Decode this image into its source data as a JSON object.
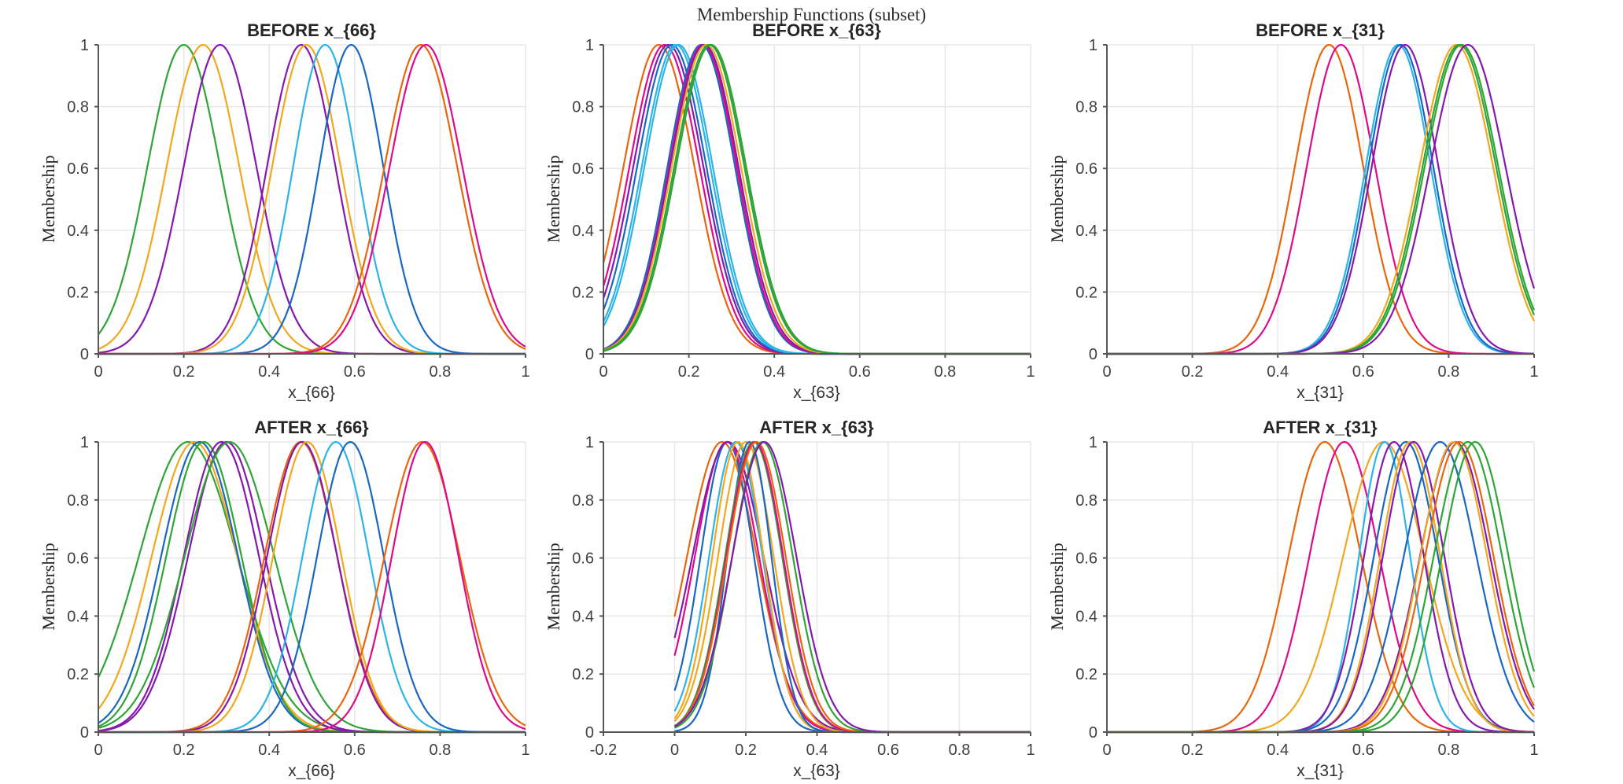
{
  "figure": {
    "title": "Membership Functions (subset)",
    "background": "#ffffff"
  },
  "palette": {
    "orange": "#E8660D",
    "magenta": "#DC0B8C",
    "purple": "#8519AC",
    "blue": "#1A67C2",
    "cyan": "#2CB3E8",
    "gold": "#F0A81E",
    "green": "#2FA437"
  },
  "axis_style": {
    "spine_color": "#575757",
    "grid_color": "#e7e7e7",
    "tick_label_color": "#404040",
    "curve_width": 2.2
  },
  "chart_data": [
    {
      "type": "line",
      "title": "BEFORE x_{66}",
      "xlabel": "x_{66}",
      "ylabel": "Membership",
      "xlim": [
        0,
        1
      ],
      "ylim": [
        0,
        1
      ],
      "xticks": [
        0,
        0.2,
        0.4,
        0.6,
        0.8,
        1
      ],
      "yticks": [
        0,
        0.2,
        0.4,
        0.6,
        0.8,
        1
      ],
      "grid": true,
      "curve_model": "gaussian",
      "x_domain": [
        0,
        1
      ],
      "series": [
        {
          "color": "green",
          "center": 0.2,
          "sigma": 0.085
        },
        {
          "color": "gold",
          "center": 0.245,
          "sigma": 0.085
        },
        {
          "color": "purple",
          "center": 0.285,
          "sigma": 0.085
        },
        {
          "color": "purple",
          "center": 0.475,
          "sigma": 0.08
        },
        {
          "color": "gold",
          "center": 0.487,
          "sigma": 0.08
        },
        {
          "color": "cyan",
          "center": 0.531,
          "sigma": 0.075
        },
        {
          "color": "blue",
          "center": 0.592,
          "sigma": 0.075
        },
        {
          "color": "orange",
          "center": 0.755,
          "sigma": 0.085
        },
        {
          "color": "magenta",
          "center": 0.767,
          "sigma": 0.085
        }
      ]
    },
    {
      "type": "line",
      "title": "BEFORE x_{63}",
      "xlabel": "x_{63}",
      "ylabel": "Membership",
      "xlim": [
        0,
        1
      ],
      "ylim": [
        0,
        1
      ],
      "xticks": [
        0,
        0.2,
        0.4,
        0.6,
        0.8,
        1
      ],
      "yticks": [
        0,
        0.2,
        0.4,
        0.6,
        0.8,
        1
      ],
      "grid": true,
      "curve_model": "gaussian",
      "x_domain": [
        0,
        1
      ],
      "series": [
        {
          "color": "orange",
          "center": 0.13,
          "sigma": 0.083
        },
        {
          "color": "magenta",
          "center": 0.143,
          "sigma": 0.082
        },
        {
          "color": "purple",
          "center": 0.152,
          "sigma": 0.082
        },
        {
          "color": "blue",
          "center": 0.16,
          "sigma": 0.081
        },
        {
          "color": "cyan",
          "center": 0.17,
          "sigma": 0.08
        },
        {
          "color": "cyan",
          "center": 0.176,
          "sigma": 0.08
        },
        {
          "color": "blue",
          "center": 0.229,
          "sigma": 0.079
        },
        {
          "color": "magenta",
          "center": 0.233,
          "sigma": 0.079
        },
        {
          "color": "purple",
          "center": 0.236,
          "sigma": 0.08
        },
        {
          "color": "gold",
          "center": 0.241,
          "sigma": 0.081
        },
        {
          "color": "green",
          "center": 0.248,
          "sigma": 0.082
        },
        {
          "color": "green",
          "center": 0.252,
          "sigma": 0.082
        }
      ]
    },
    {
      "type": "line",
      "title": "BEFORE x_{31}",
      "xlabel": "x_{31}",
      "ylabel": "Membership",
      "xlim": [
        0,
        1
      ],
      "ylim": [
        0,
        1
      ],
      "xticks": [
        0,
        0.2,
        0.4,
        0.6,
        0.8,
        1
      ],
      "yticks": [
        0,
        0.2,
        0.4,
        0.6,
        0.8,
        1
      ],
      "grid": true,
      "curve_model": "gaussian",
      "x_domain": [
        0,
        1
      ],
      "series": [
        {
          "color": "orange",
          "center": 0.52,
          "sigma": 0.08
        },
        {
          "color": "magenta",
          "center": 0.548,
          "sigma": 0.08
        },
        {
          "color": "cyan",
          "center": 0.682,
          "sigma": 0.076
        },
        {
          "color": "blue",
          "center": 0.688,
          "sigma": 0.076
        },
        {
          "color": "purple",
          "center": 0.698,
          "sigma": 0.078
        },
        {
          "color": "gold",
          "center": 0.818,
          "sigma": 0.086
        },
        {
          "color": "green",
          "center": 0.825,
          "sigma": 0.086
        },
        {
          "color": "green",
          "center": 0.83,
          "sigma": 0.086
        },
        {
          "color": "purple",
          "center": 0.845,
          "sigma": 0.088
        }
      ]
    },
    {
      "type": "line",
      "title": "AFTER x_{66}",
      "xlabel": "x_{66}",
      "ylabel": "Membership",
      "xlim": [
        0,
        1
      ],
      "ylim": [
        0,
        1
      ],
      "xticks": [
        0,
        0.2,
        0.4,
        0.6,
        0.8,
        1
      ],
      "yticks": [
        0,
        0.2,
        0.4,
        0.6,
        0.8,
        1
      ],
      "grid": true,
      "curve_model": "gaussian",
      "x_domain": [
        0,
        1
      ],
      "series": [
        {
          "color": "green",
          "center": 0.21,
          "sigma": 0.115
        },
        {
          "color": "gold",
          "center": 0.225,
          "sigma": 0.1
        },
        {
          "color": "blue",
          "center": 0.237,
          "sigma": 0.09
        },
        {
          "color": "green",
          "center": 0.247,
          "sigma": 0.088
        },
        {
          "color": "purple",
          "center": 0.288,
          "sigma": 0.088
        },
        {
          "color": "purple",
          "center": 0.3,
          "sigma": 0.09
        },
        {
          "color": "green",
          "center": 0.307,
          "sigma": 0.105
        },
        {
          "color": "orange",
          "center": 0.474,
          "sigma": 0.085
        },
        {
          "color": "purple",
          "center": 0.477,
          "sigma": 0.082
        },
        {
          "color": "gold",
          "center": 0.489,
          "sigma": 0.08
        },
        {
          "color": "cyan",
          "center": 0.556,
          "sigma": 0.078
        },
        {
          "color": "blue",
          "center": 0.59,
          "sigma": 0.078
        },
        {
          "color": "orange",
          "center": 0.758,
          "sigma": 0.088
        },
        {
          "color": "magenta",
          "center": 0.765,
          "sigma": 0.078
        }
      ]
    },
    {
      "type": "line",
      "title": "AFTER x_{63}",
      "xlabel": "x_{63}",
      "ylabel": "Membership",
      "xlim": [
        -0.2,
        1
      ],
      "ylim": [
        0,
        1
      ],
      "xticks": [
        -0.2,
        0,
        0.2,
        0.4,
        0.6,
        0.8,
        1
      ],
      "yticks": [
        0,
        0.2,
        0.4,
        0.6,
        0.8,
        1
      ],
      "grid": true,
      "curve_model": "gaussian",
      "x_domain": [
        0,
        1
      ],
      "series": [
        {
          "color": "orange",
          "center": 0.133,
          "sigma": 0.098
        },
        {
          "color": "blue",
          "center": 0.148,
          "sigma": 0.075
        },
        {
          "color": "magenta",
          "center": 0.147,
          "sigma": 0.09
        },
        {
          "color": "purple",
          "center": 0.15,
          "sigma": 0.1
        },
        {
          "color": "cyan",
          "center": 0.172,
          "sigma": 0.075
        },
        {
          "color": "gold",
          "center": 0.178,
          "sigma": 0.072
        },
        {
          "color": "gold",
          "center": 0.2,
          "sigma": 0.078
        },
        {
          "color": "blue",
          "center": 0.21,
          "sigma": 0.062
        },
        {
          "color": "green",
          "center": 0.222,
          "sigma": 0.08
        },
        {
          "color": "magenta",
          "center": 0.225,
          "sigma": 0.08
        },
        {
          "color": "orange",
          "center": 0.23,
          "sigma": 0.082
        },
        {
          "color": "green",
          "center": 0.247,
          "sigma": 0.085
        },
        {
          "color": "purple",
          "center": 0.252,
          "sigma": 0.09
        }
      ]
    },
    {
      "type": "line",
      "title": "AFTER x_{31}",
      "xlabel": "x_{31}",
      "ylabel": "Membership",
      "xlim": [
        0,
        1
      ],
      "ylim": [
        0,
        1
      ],
      "xticks": [
        0,
        0.2,
        0.4,
        0.6,
        0.8,
        1
      ],
      "yticks": [
        0,
        0.2,
        0.4,
        0.6,
        0.8,
        1
      ],
      "grid": true,
      "curve_model": "gaussian",
      "x_domain": [
        0,
        1
      ],
      "series": [
        {
          "color": "orange",
          "center": 0.51,
          "sigma": 0.085
        },
        {
          "color": "magenta",
          "center": 0.556,
          "sigma": 0.082
        },
        {
          "color": "gold",
          "center": 0.648,
          "sigma": 0.095
        },
        {
          "color": "cyan",
          "center": 0.65,
          "sigma": 0.06
        },
        {
          "color": "purple",
          "center": 0.672,
          "sigma": 0.07
        },
        {
          "color": "blue",
          "center": 0.7,
          "sigma": 0.075
        },
        {
          "color": "gold",
          "center": 0.71,
          "sigma": 0.07
        },
        {
          "color": "purple",
          "center": 0.718,
          "sigma": 0.072
        },
        {
          "color": "blue",
          "center": 0.78,
          "sigma": 0.085
        },
        {
          "color": "purple",
          "center": 0.815,
          "sigma": 0.082
        },
        {
          "color": "gold",
          "center": 0.812,
          "sigma": 0.078
        },
        {
          "color": "orange",
          "center": 0.825,
          "sigma": 0.08
        },
        {
          "color": "green",
          "center": 0.845,
          "sigma": 0.08
        },
        {
          "color": "green",
          "center": 0.862,
          "sigma": 0.078
        }
      ]
    }
  ]
}
